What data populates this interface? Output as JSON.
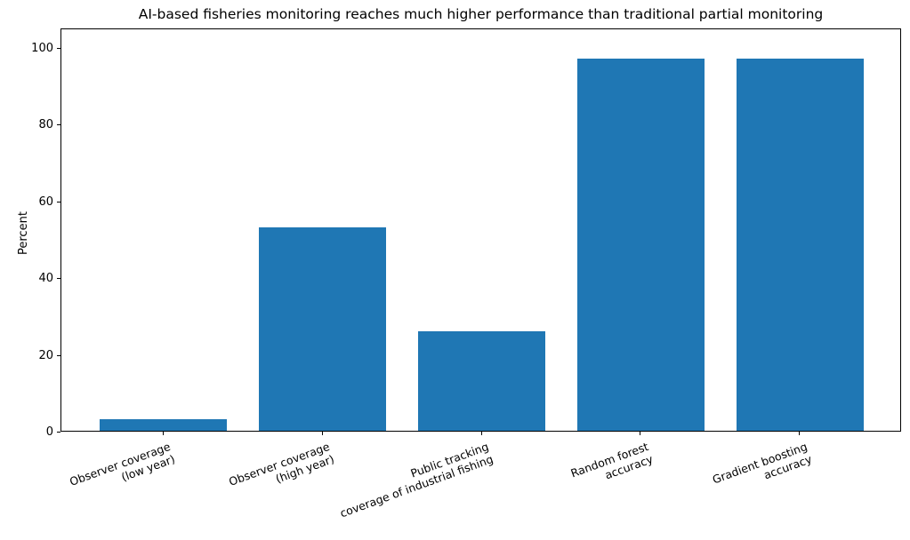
{
  "chart_data": {
    "type": "bar",
    "title": "AI-based fisheries monitoring reaches much higher performance than traditional partial monitoring",
    "ylabel": "Percent",
    "xlabel": "",
    "categories": [
      "Observer coverage\n(low year)",
      "Observer coverage\n(high year)",
      "Public tracking\ncoverage of industrial fishing",
      "Random forest\naccuracy",
      "Gradient boosting\naccuracy"
    ],
    "values": [
      3,
      53,
      26,
      97,
      97
    ],
    "yticks": [
      0,
      20,
      40,
      60,
      80,
      100
    ],
    "ylim": [
      0,
      105
    ],
    "bar_color": "#1f77b4",
    "grid": false,
    "legend": false,
    "tick_label_rotation_deg": 20
  }
}
